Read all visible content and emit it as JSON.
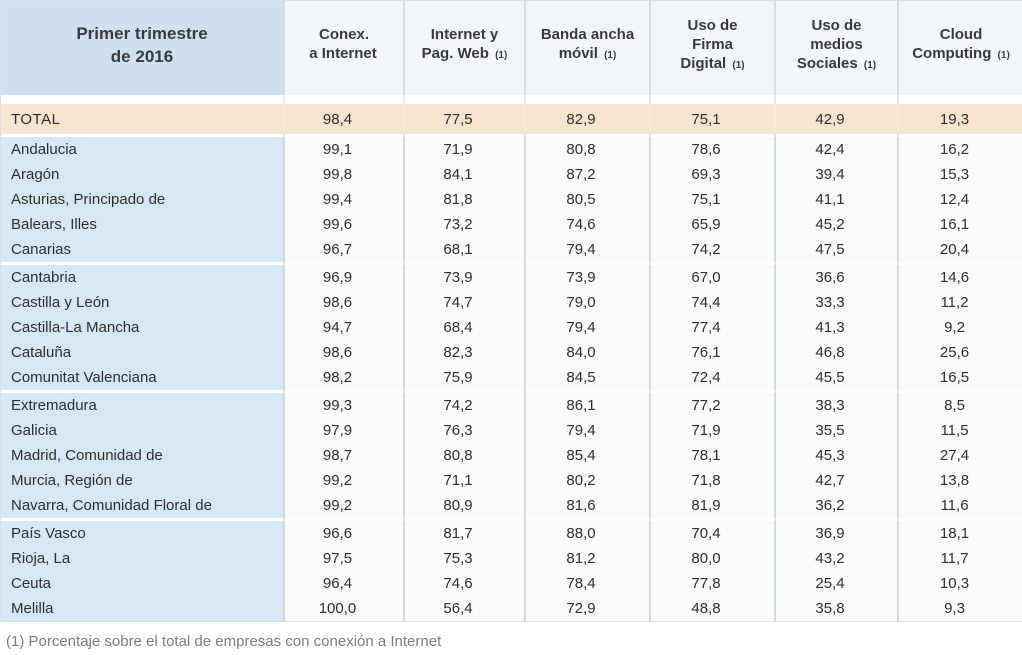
{
  "chart_data": {
    "type": "table",
    "title": "Primer trimestre de 2016",
    "columns": [
      "Conex. a Internet",
      "Internet y Pag. Web (1)",
      "Banda ancha móvil (1)",
      "Uso de Firma Digital (1)",
      "Uso de medios Sociales (1)",
      "Cloud Computing (1)"
    ],
    "total": {
      "name": "TOTAL",
      "values": [
        "98,4",
        "77,5",
        "82,9",
        "75,1",
        "42,9",
        "19,3"
      ]
    },
    "groups": [
      [
        {
          "name": "Andalucia",
          "values": [
            "99,1",
            "71,9",
            "80,8",
            "78,6",
            "42,4",
            "16,2"
          ]
        },
        {
          "name": "Aragón",
          "values": [
            "99,8",
            "84,1",
            "87,2",
            "69,3",
            "39,4",
            "15,3"
          ]
        },
        {
          "name": "Asturias, Principado de",
          "values": [
            "99,4",
            "81,8",
            "80,5",
            "75,1",
            "41,1",
            "12,4"
          ]
        },
        {
          "name": "Balears, Illes",
          "values": [
            "99,6",
            "73,2",
            "74,6",
            "65,9",
            "45,2",
            "16,1"
          ]
        },
        {
          "name": "Canarias",
          "values": [
            "96,7",
            "68,1",
            "79,4",
            "74,2",
            "47,5",
            "20,4"
          ]
        }
      ],
      [
        {
          "name": "Cantabria",
          "values": [
            "96,9",
            "73,9",
            "73,9",
            "67,0",
            "36,6",
            "14,6"
          ]
        },
        {
          "name": "Castilla y León",
          "values": [
            "98,6",
            "74,7",
            "79,0",
            "74,4",
            "33,3",
            "11,2"
          ]
        },
        {
          "name": "Castilla-La Mancha",
          "values": [
            "94,7",
            "68,4",
            "79,4",
            "77,4",
            "41,3",
            "9,2"
          ]
        },
        {
          "name": "Cataluña",
          "values": [
            "98,6",
            "82,3",
            "84,0",
            "76,1",
            "46,8",
            "25,6"
          ]
        },
        {
          "name": "Comunitat Valenciana",
          "values": [
            "98,2",
            "75,9",
            "84,5",
            "72,4",
            "45,5",
            "16,5"
          ]
        }
      ],
      [
        {
          "name": "Extremadura",
          "values": [
            "99,3",
            "74,2",
            "86,1",
            "77,2",
            "38,3",
            "8,5"
          ]
        },
        {
          "name": "Galicia",
          "values": [
            "97,9",
            "76,3",
            "79,4",
            "71,9",
            "35,5",
            "11,5"
          ]
        },
        {
          "name": "Madrid, Comunidad de",
          "values": [
            "98,7",
            "80,8",
            "85,4",
            "78,1",
            "45,3",
            "27,4"
          ]
        },
        {
          "name": "Murcia, Región de",
          "values": [
            "99,2",
            "71,1",
            "80,2",
            "71,8",
            "42,7",
            "13,8"
          ]
        },
        {
          "name": "Navarra, Comunidad Floral de",
          "values": [
            "99,2",
            "80,9",
            "81,6",
            "81,9",
            "36,2",
            "11,6"
          ]
        }
      ],
      [
        {
          "name": "País Vasco",
          "values": [
            "96,6",
            "81,7",
            "88,0",
            "70,4",
            "36,9",
            "18,1"
          ]
        },
        {
          "name": "Rioja, La",
          "values": [
            "97,5",
            "75,3",
            "81,2",
            "80,0",
            "43,2",
            "11,7"
          ]
        },
        {
          "name": "Ceuta",
          "values": [
            "96,4",
            "74,6",
            "78,4",
            "77,8",
            "25,4",
            "10,3"
          ]
        },
        {
          "name": "Melilla",
          "values": [
            "100,0",
            "56,4",
            "72,9",
            "48,8",
            "35,8",
            "9,3"
          ]
        }
      ]
    ],
    "footnote": "(1) Porcentaje sobre el total de empresas con conexión a Internet"
  },
  "header": {
    "title": "Primer trimestre\nde 2016",
    "columns": [
      {
        "label": "Conex.\na Internet",
        "marker": ""
      },
      {
        "label": "Internet y\nPag. Web",
        "marker": "(1)"
      },
      {
        "label": "Banda ancha\nmóvil",
        "marker": "(1)"
      },
      {
        "label": "Uso de\nFirma\nDigital",
        "marker": "(1)"
      },
      {
        "label": "Uso de\nmedios\nSociales",
        "marker": "(1)"
      },
      {
        "label": "Cloud\nComputing",
        "marker": "(1)"
      }
    ]
  },
  "footer": {
    "note": "(1) Porcentaje sobre el total de empresas con conexión a Internet"
  },
  "colors": {
    "title_header_bg": "#cfe0f0",
    "column_header_bg": "#f2f6fa",
    "total_row_bg": "#f7e5cf",
    "region_cell_bg": "#d8e7f6",
    "value_cell_bg": "#fafbfc",
    "grid_border": "#cfd9e0",
    "footnote_text": "#7c7c7c"
  }
}
